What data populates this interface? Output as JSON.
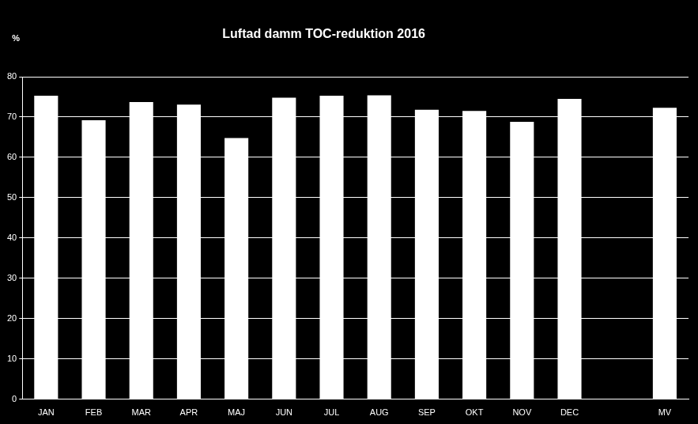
{
  "chart_data": {
    "type": "bar",
    "title": "Luftad damm TOC-reduktion 2016",
    "y_label": "%",
    "categories": [
      "JAN",
      "FEB",
      "MAR",
      "APR",
      "MAJ",
      "JUN",
      "JUL",
      "AUG",
      "SEP",
      "OKT",
      "NOV",
      "DEC",
      null,
      "MV"
    ],
    "values": [
      75.3,
      69.2,
      73.7,
      73.1,
      64.8,
      74.8,
      75.3,
      75.4,
      71.8,
      71.5,
      68.8,
      74.5,
      null,
      72.3
    ],
    "color": "#ffffff",
    "ylim": [
      0,
      80
    ],
    "yticks": [
      0,
      10,
      20,
      30,
      40,
      50,
      60,
      70,
      80
    ],
    "grid": true
  }
}
